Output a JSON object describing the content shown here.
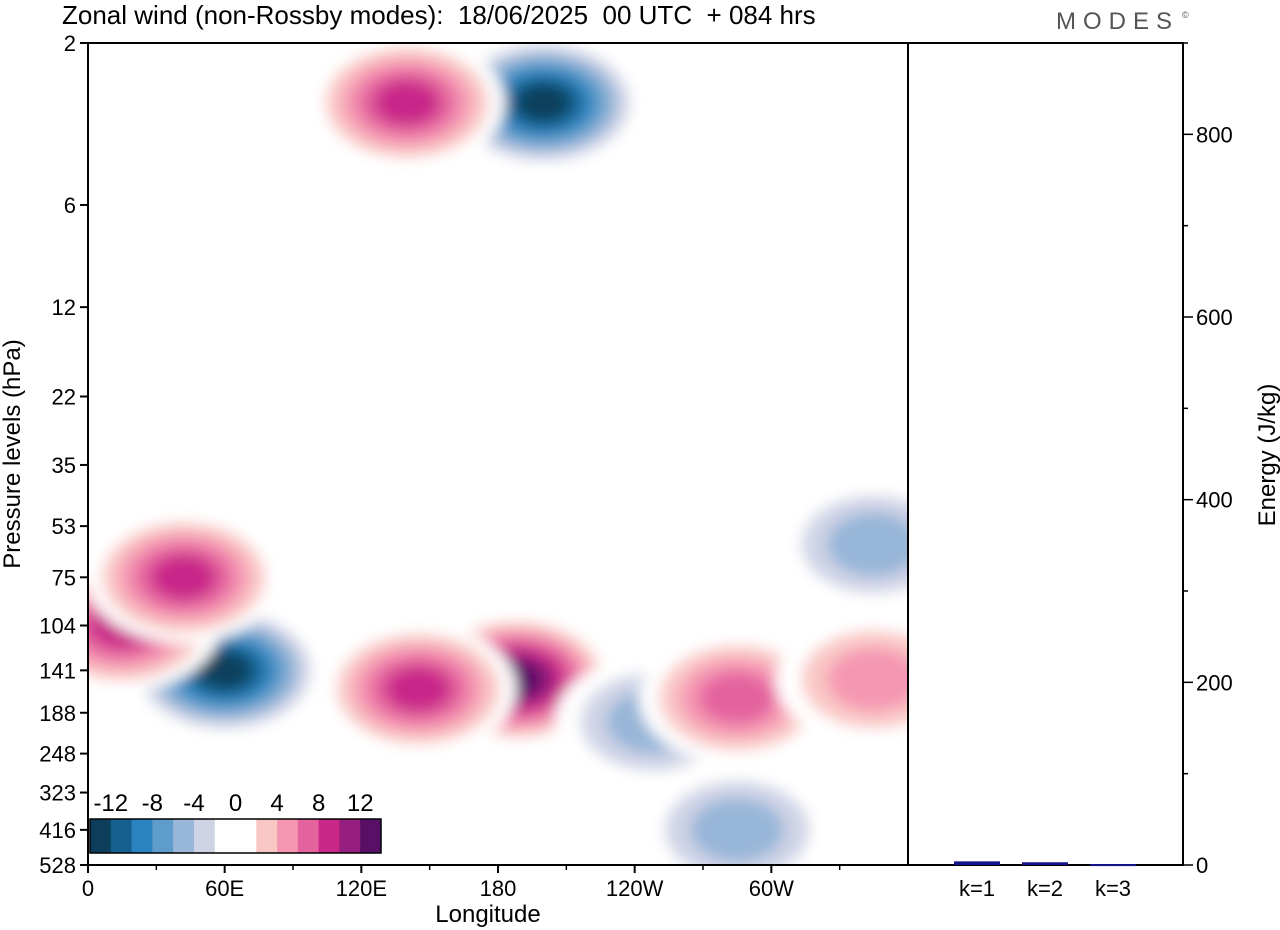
{
  "title": "Zonal wind (non-Rossby modes):  18/06/2025  00 UTC  + 084 hrs",
  "logo": "MODES",
  "logo_mark": "©",
  "chart_data": [
    {
      "type": "heatmap",
      "title": "Zonal wind (non-Rossby modes):  18/06/2025  00 UTC  + 084 hrs",
      "xlabel": "Longitude",
      "ylabel": "Pressure levels (hPa)",
      "x_ticks": [
        "0",
        "60E",
        "120E",
        "180",
        "120W",
        "60W"
      ],
      "x_tick_values": [
        0,
        60,
        120,
        180,
        240,
        300
      ],
      "xlim": [
        0,
        360
      ],
      "y_ticks": [
        "2",
        "6",
        "12",
        "22",
        "35",
        "53",
        "75",
        "104",
        "141",
        "188",
        "248",
        "323",
        "416",
        "528"
      ],
      "y_scale": "log (pressure, top = 2 hPa)",
      "colorbar": {
        "labels": [
          "-12",
          "-8",
          "-4",
          "0",
          "4",
          "8",
          "12"
        ],
        "levels": [
          -14,
          -12,
          -10,
          -8,
          -6,
          -4,
          -2,
          0,
          2,
          4,
          6,
          8,
          10,
          12,
          14
        ],
        "colors": [
          "#0d3f5c",
          "#15608f",
          "#2b84bf",
          "#5e9ccb",
          "#98b6d8",
          "#cfd3e6",
          "#ffffff",
          "#ffffff",
          "#f9c7c4",
          "#f597b3",
          "#e4639e",
          "#c92889",
          "#951e7e",
          "#5a0f66"
        ]
      },
      "features": [
        {
          "lon": 60,
          "lev": 141,
          "value": -14
        },
        {
          "lon": 15,
          "lev": 104,
          "value": 10
        },
        {
          "lon": 42,
          "lev": 75,
          "value": 10
        },
        {
          "lon": 188,
          "lev": 150,
          "value": 14
        },
        {
          "lon": 145,
          "lev": 160,
          "value": 10
        },
        {
          "lon": 200,
          "lev": 3,
          "value": -14
        },
        {
          "lon": 140,
          "lev": 3,
          "value": 10
        },
        {
          "lon": 248,
          "lev": 200,
          "value": -6
        },
        {
          "lon": 285,
          "lev": 170,
          "value": 8
        },
        {
          "lon": 345,
          "lev": 150,
          "value": 6
        },
        {
          "lon": 345,
          "lev": 60,
          "value": -6
        },
        {
          "lon": 285,
          "lev": 416,
          "value": -6
        }
      ]
    },
    {
      "type": "bar",
      "categories": [
        "k=1",
        "k=2",
        "k=3"
      ],
      "values": [
        4,
        3,
        1
      ],
      "ylabel": "Energy (J/kg)",
      "ylim": [
        0,
        900
      ],
      "y_ticks": [
        "0",
        "200",
        "400",
        "600",
        "800"
      ],
      "bar_color": "#14148c"
    }
  ]
}
